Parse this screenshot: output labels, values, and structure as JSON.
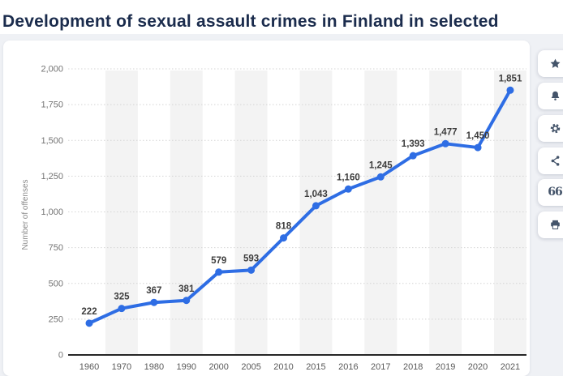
{
  "page": {
    "title": "Development of sexual assault crimes in Finland in selected",
    "title_color": "#1b2c4d"
  },
  "sidebar": {
    "buttons": [
      {
        "name": "favorite",
        "icon": "star-icon"
      },
      {
        "name": "alerts",
        "icon": "bell-icon"
      },
      {
        "name": "settings",
        "icon": "gear-icon"
      },
      {
        "name": "share",
        "icon": "share-icon"
      },
      {
        "name": "cite",
        "icon": "quote-icon"
      },
      {
        "name": "print",
        "icon": "printer-icon"
      }
    ],
    "icon_color": "#44546a"
  },
  "chart_data": {
    "type": "line",
    "title": "Development of sexual assault crimes in Finland in selected",
    "categories": [
      "1960",
      "1970",
      "1980",
      "1990",
      "2000",
      "2005",
      "2010",
      "2015",
      "2016",
      "2017",
      "2018",
      "2019",
      "2020",
      "2021"
    ],
    "values": [
      222,
      325,
      367,
      381,
      579,
      593,
      818,
      1043,
      1160,
      1245,
      1393,
      1477,
      1450,
      1851
    ],
    "point_labels": [
      "222",
      "325",
      "367",
      "381",
      "579",
      "593",
      "818",
      "1,043",
      "1,160",
      "1,245",
      "1,393",
      "1,477",
      "1,450",
      "1,851"
    ],
    "xlabel": "",
    "ylabel": "Number of offenses",
    "ylim": [
      0,
      2000
    ],
    "ytick_step": 250,
    "ytick_labels": [
      "0",
      "250",
      "500",
      "750",
      "1,000",
      "1,250",
      "1,500",
      "1,750",
      "2,000"
    ],
    "grid": "horizontal-dotted",
    "legend": "none",
    "plot_bands": "light vertical stripes behind alternating categories",
    "colors": {
      "line": "#2e6de4",
      "marker": "#2e6de4",
      "band": "#f3f3f3",
      "grid": "#d4d4d4",
      "axis": "#262626",
      "ytick": "#737373",
      "xtick": "#595959",
      "data_label": "#3d3d3d",
      "ylabel": "#8a8a8a"
    }
  }
}
